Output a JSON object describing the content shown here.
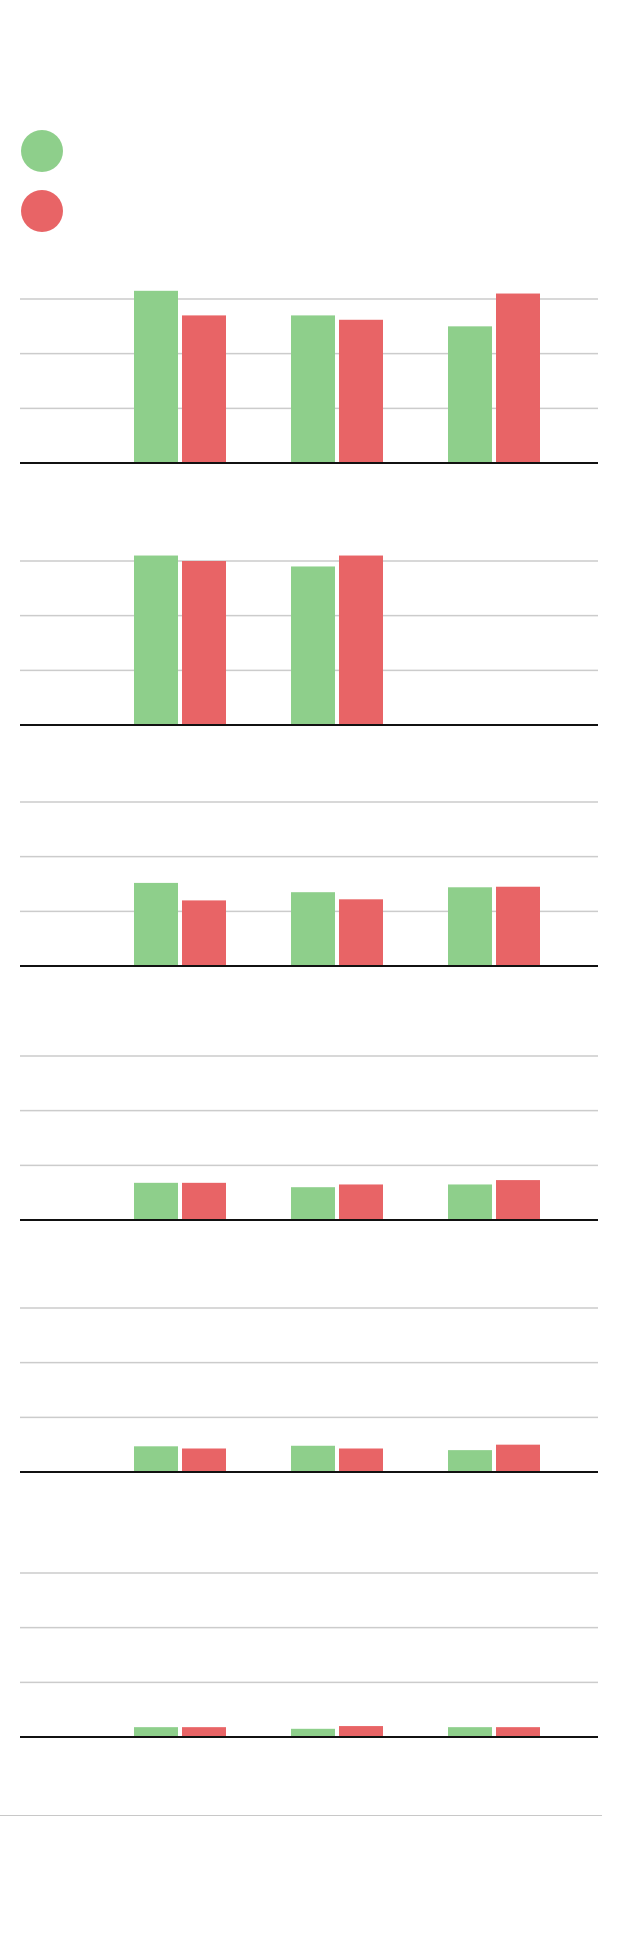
{
  "colors": {
    "series_a": "#8ecf8b",
    "series_b": "#e86466",
    "grid": "#cccccc",
    "baseline": "#111111"
  },
  "legend": [
    {
      "name": "",
      "color": "#8ecf8b"
    },
    {
      "name": "",
      "color": "#e86466"
    }
  ],
  "chart_data": [
    {
      "type": "bar",
      "title": "",
      "grid": true,
      "ylim": [
        0,
        3
      ],
      "series": [
        {
          "name": "",
          "values": [
            3.15,
            2.7,
            2.5
          ]
        },
        {
          "name": "",
          "values": [
            2.7,
            2.62,
            3.1
          ]
        }
      ]
    },
    {
      "type": "bar",
      "title": "",
      "grid": true,
      "ylim": [
        0,
        3
      ],
      "series": [
        {
          "name": "",
          "values": [
            3.1,
            2.9
          ]
        },
        {
          "name": "",
          "values": [
            3.0,
            3.1
          ]
        }
      ]
    },
    {
      "type": "bar",
      "title": "",
      "grid": true,
      "ylim": [
        0,
        3
      ],
      "series": [
        {
          "name": "",
          "values": [
            1.52,
            1.35,
            1.44
          ]
        },
        {
          "name": "",
          "values": [
            1.2,
            1.22,
            1.45
          ]
        }
      ]
    },
    {
      "type": "bar",
      "title": "",
      "grid": true,
      "ylim": [
        0,
        3
      ],
      "series": [
        {
          "name": "",
          "values": [
            0.68,
            0.6,
            0.65
          ]
        },
        {
          "name": "",
          "values": [
            0.68,
            0.65,
            0.73
          ]
        }
      ]
    },
    {
      "type": "bar",
      "title": "",
      "grid": true,
      "ylim": [
        0,
        3
      ],
      "series": [
        {
          "name": "",
          "values": [
            0.47,
            0.48,
            0.4
          ]
        },
        {
          "name": "",
          "values": [
            0.43,
            0.43,
            0.5
          ]
        }
      ]
    },
    {
      "type": "bar",
      "title": "",
      "grid": true,
      "ylim": [
        0,
        3
      ],
      "series": [
        {
          "name": "",
          "values": [
            0.18,
            0.15,
            0.18
          ]
        },
        {
          "name": "",
          "values": [
            0.18,
            0.2,
            0.18
          ]
        }
      ]
    }
  ]
}
